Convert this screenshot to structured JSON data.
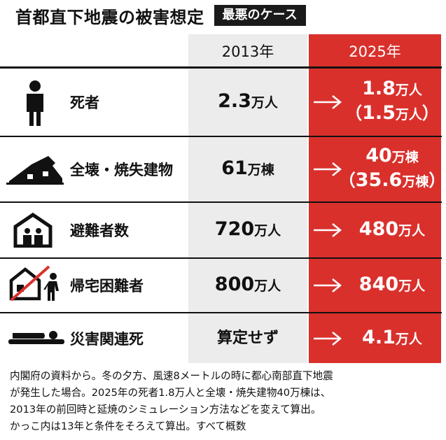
{
  "title": {
    "main": "首都直下地震の被害想定",
    "badge": "最悪のケース"
  },
  "columns": {
    "year_2013": "2013年",
    "year_2025": "2025年"
  },
  "rows": [
    {
      "label": "死者",
      "icon": "person-icon",
      "v2013": {
        "num": "2.3",
        "unit": "万人"
      },
      "v2025": {
        "num": "1.8",
        "unit": "万人"
      },
      "v2025_alt": {
        "open": "（",
        "num": "1.5",
        "unit": "万人",
        "close": "）"
      }
    },
    {
      "label": "全壊・焼失建物",
      "icon": "collapsed-house-icon",
      "v2013": {
        "num": "61",
        "unit": "万棟"
      },
      "v2025": {
        "num": "40",
        "unit": "万棟"
      },
      "v2025_alt": {
        "open": "（",
        "num": "35.6",
        "unit": "万棟",
        "close": "）"
      }
    },
    {
      "label": "避難者数",
      "icon": "shelter-icon",
      "v2013": {
        "num": "720",
        "unit": "万人"
      },
      "v2025": {
        "num": "480",
        "unit": "万人"
      }
    },
    {
      "label": "帰宅困難者",
      "icon": "stranded-commuter-icon",
      "v2013": {
        "num": "800",
        "unit": "万人"
      },
      "v2025": {
        "num": "840",
        "unit": "万人"
      }
    },
    {
      "label": "災害関連死",
      "icon": "lying-person-icon",
      "v2013": {
        "text": "算定せず"
      },
      "v2025": {
        "num": "4.1",
        "unit": "万人"
      }
    }
  ],
  "note": [
    "内閣府の資料から。冬の夕方、風速8メートルの時に都心南部直下地震",
    "が発生した場合。2025年の死者1.8万人と全壊・焼失建物40万棟は、",
    "2013年の前回時と延焼のシミュレーション方法などを変えて算出。",
    "かっこ内は13年と条件をそろえて算出。すべて概数"
  ],
  "colors": {
    "accent_red": "#d9302c",
    "column_gray": "#ececec",
    "ink": "#111111"
  }
}
